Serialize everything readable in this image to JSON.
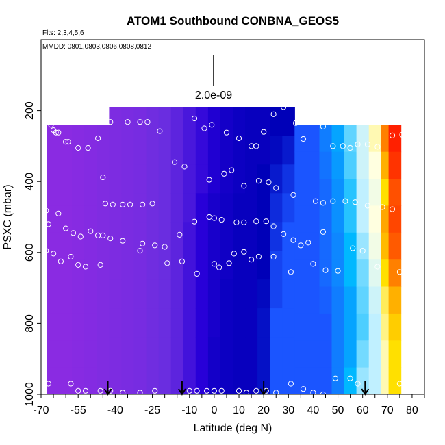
{
  "chart_data": {
    "type": "heatmap",
    "title": "ATOM1 Southbound CONBNA_GEOS5",
    "subtitle_flights": "Flts: 2,3,4,5,6",
    "subtitle_dates": "MMDD: 0801,0803,0806,0808,0812",
    "xlabel": "Latitude (deg N)",
    "ylabel": "PSXC (mbar)",
    "xlim": [
      -70,
      85
    ],
    "ylim": [
      1000,
      0
    ],
    "x_tick_labels": [
      "-70",
      "-55",
      "-40",
      "-25",
      "-10",
      "0",
      "10",
      "20",
      "30",
      "40",
      "50",
      "60",
      "70",
      "80"
    ],
    "y_tick_labels": [
      "200",
      "400",
      "600",
      "800",
      "1000"
    ],
    "scale_label": "2.0e-09",
    "arrow_latitudes": [
      -43,
      -13,
      20,
      61
    ],
    "color_stops": [
      "#8a2be2",
      "#6a2de0",
      "#2800d8",
      "#0000b8",
      "#1b55ff",
      "#00b8ff",
      "#c0f0ff",
      "#ffffe0",
      "#ffe000",
      "#ff8000",
      "#ff2000"
    ],
    "profiles": [
      {
        "lat": 73,
        "top": 240,
        "values": [
          1.0,
          0.98,
          0.95,
          0.96,
          0.94,
          0.9,
          0.85,
          0.82,
          0.8,
          0.8
        ]
      },
      {
        "lat": 70,
        "top": 240,
        "values": [
          0.9,
          0.85,
          0.8,
          0.86,
          0.84,
          0.8,
          0.76,
          0.74,
          0.72,
          0.72
        ]
      },
      {
        "lat": 65,
        "top": 240,
        "values": [
          0.72,
          0.7,
          0.68,
          0.7,
          0.68,
          0.65,
          0.62,
          0.6,
          0.6,
          0.6
        ]
      },
      {
        "lat": 60,
        "top": 240,
        "values": [
          0.62,
          0.62,
          0.6,
          0.6,
          0.58,
          0.56,
          0.55,
          0.54,
          0.56,
          0.58
        ]
      },
      {
        "lat": 55,
        "top": 240,
        "values": [
          0.55,
          0.54,
          0.52,
          0.52,
          0.5,
          0.5,
          0.48,
          0.48,
          0.48,
          0.5
        ]
      },
      {
        "lat": 50,
        "top": 240,
        "values": [
          0.48,
          0.47,
          0.46,
          0.46,
          0.45,
          0.45,
          0.44,
          0.44,
          0.44,
          0.44
        ]
      },
      {
        "lat": 45,
        "top": 240,
        "values": [
          0.44,
          0.43,
          0.42,
          0.42,
          0.42,
          0.42,
          0.41,
          0.4,
          0.4,
          0.4
        ]
      },
      {
        "lat": 40,
        "top": 240,
        "values": [
          0.4,
          0.4,
          0.4,
          0.4,
          0.4,
          0.4,
          0.4,
          0.4,
          0.4,
          0.4
        ]
      },
      {
        "lat": 35,
        "top": 240,
        "values": [
          0.4,
          0.4,
          0.4,
          0.4,
          0.4,
          0.4,
          0.4,
          0.4,
          0.4,
          0.4
        ]
      },
      {
        "lat": 30,
        "top": 190,
        "values": [
          0.3,
          0.33,
          0.36,
          0.38,
          0.4,
          0.4,
          0.4,
          0.4,
          0.4,
          0.4
        ]
      },
      {
        "lat": 25,
        "top": 190,
        "values": [
          0.3,
          0.31,
          0.33,
          0.35,
          0.36,
          0.38,
          0.38,
          0.4,
          0.4,
          0.4
        ]
      },
      {
        "lat": 20,
        "top": 190,
        "values": [
          0.28,
          0.28,
          0.3,
          0.3,
          0.3,
          0.3,
          0.31,
          0.32,
          0.32,
          0.32
        ]
      },
      {
        "lat": 15,
        "top": 190,
        "values": [
          0.28,
          0.28,
          0.28,
          0.28,
          0.28,
          0.28,
          0.28,
          0.28,
          0.28,
          0.28
        ]
      },
      {
        "lat": 10,
        "top": 190,
        "values": [
          0.27,
          0.27,
          0.27,
          0.28,
          0.28,
          0.28,
          0.28,
          0.28,
          0.28,
          0.28
        ]
      },
      {
        "lat": 5,
        "top": 190,
        "values": [
          0.25,
          0.25,
          0.25,
          0.26,
          0.26,
          0.26,
          0.27,
          0.27,
          0.27,
          0.27
        ]
      },
      {
        "lat": 0,
        "top": 190,
        "values": [
          0.22,
          0.22,
          0.22,
          0.24,
          0.24,
          0.24,
          0.24,
          0.24,
          0.25,
          0.25
        ]
      },
      {
        "lat": -5,
        "top": 190,
        "values": [
          0.18,
          0.18,
          0.18,
          0.2,
          0.2,
          0.2,
          0.2,
          0.2,
          0.2,
          0.2
        ]
      },
      {
        "lat": -10,
        "top": 190,
        "values": [
          0.15,
          0.15,
          0.15,
          0.15,
          0.16,
          0.16,
          0.16,
          0.16,
          0.16,
          0.16
        ]
      },
      {
        "lat": -15,
        "top": 190,
        "values": [
          0.12,
          0.12,
          0.12,
          0.12,
          0.12,
          0.12,
          0.12,
          0.12,
          0.12,
          0.12
        ]
      },
      {
        "lat": -20,
        "top": 190,
        "values": [
          0.1,
          0.1,
          0.1,
          0.1,
          0.1,
          0.1,
          0.1,
          0.1,
          0.1,
          0.1
        ]
      },
      {
        "lat": -25,
        "top": 190,
        "values": [
          0.08,
          0.08,
          0.08,
          0.08,
          0.08,
          0.08,
          0.08,
          0.08,
          0.08,
          0.08
        ]
      },
      {
        "lat": -30,
        "top": 190,
        "values": [
          0.06,
          0.06,
          0.06,
          0.06,
          0.06,
          0.06,
          0.06,
          0.06,
          0.06,
          0.06
        ]
      },
      {
        "lat": -35,
        "top": 190,
        "values": [
          0.05,
          0.05,
          0.05,
          0.05,
          0.05,
          0.05,
          0.05,
          0.05,
          0.05,
          0.05
        ]
      },
      {
        "lat": -40,
        "top": 190,
        "values": [
          0.04,
          0.04,
          0.04,
          0.04,
          0.04,
          0.04,
          0.04,
          0.04,
          0.04,
          0.04
        ]
      },
      {
        "lat": -45,
        "top": 240,
        "values": [
          0.03,
          0.03,
          0.03,
          0.03,
          0.03,
          0.03,
          0.03,
          0.03,
          0.03,
          0.03
        ]
      },
      {
        "lat": -50,
        "top": 240,
        "values": [
          0.02,
          0.02,
          0.02,
          0.02,
          0.02,
          0.02,
          0.02,
          0.02,
          0.02,
          0.02
        ]
      },
      {
        "lat": -55,
        "top": 240,
        "values": [
          0.01,
          0.01,
          0.01,
          0.01,
          0.01,
          0.01,
          0.01,
          0.01,
          0.01,
          0.01
        ]
      },
      {
        "lat": -60,
        "top": 240,
        "values": [
          0.0,
          0.0,
          0.0,
          0.0,
          0.0,
          0.0,
          0.0,
          0.0,
          0.0,
          0.0
        ]
      },
      {
        "lat": -65,
        "top": 240,
        "values": [
          0.0,
          0.0,
          0.0,
          0.0,
          0.0,
          0.0,
          0.0,
          0.0,
          0.0,
          0.0
        ]
      }
    ],
    "obs_points": [
      [
        -68,
        225
      ],
      [
        -67,
        230
      ],
      [
        -66,
        240
      ],
      [
        -65,
        255
      ],
      [
        -64,
        262
      ],
      [
        -63,
        262
      ],
      [
        -60,
        288
      ],
      [
        -59,
        288
      ],
      [
        -55,
        305
      ],
      [
        -51,
        305
      ],
      [
        -47,
        278
      ],
      [
        -46,
        200
      ],
      [
        -42,
        232
      ],
      [
        -35,
        232
      ],
      [
        -30,
        232
      ],
      [
        -27,
        232
      ],
      [
        -22,
        258
      ],
      [
        -16,
        345
      ],
      [
        -12,
        358
      ],
      [
        -8,
        222
      ],
      [
        -4,
        250
      ],
      [
        -1,
        240
      ],
      [
        5,
        262
      ],
      [
        10,
        278
      ],
      [
        15,
        300
      ],
      [
        17,
        300
      ],
      [
        20,
        260
      ],
      [
        24,
        210
      ],
      [
        28,
        190
      ],
      [
        33,
        235
      ],
      [
        36,
        280
      ],
      [
        44,
        245
      ],
      [
        48,
        300
      ],
      [
        52,
        300
      ],
      [
        55,
        305
      ],
      [
        58,
        295
      ],
      [
        62,
        295
      ],
      [
        66,
        302
      ],
      [
        72,
        270
      ],
      [
        76,
        268
      ],
      [
        -45,
        388
      ],
      [
        -44,
        462
      ],
      [
        -41,
        465
      ],
      [
        -37,
        465
      ],
      [
        -34,
        465
      ],
      [
        -29,
        465
      ],
      [
        -25,
        462
      ],
      [
        -2,
        395
      ],
      [
        4,
        378
      ],
      [
        7,
        368
      ],
      [
        12,
        412
      ],
      [
        18,
        398
      ],
      [
        22,
        402
      ],
      [
        25,
        418
      ],
      [
        32,
        438
      ],
      [
        41,
        455
      ],
      [
        44,
        460
      ],
      [
        48,
        455
      ],
      [
        53,
        455
      ],
      [
        57,
        458
      ],
      [
        62,
        468
      ],
      [
        68,
        472
      ],
      [
        72,
        478
      ],
      [
        -68,
        482
      ],
      [
        -67,
        520
      ],
      [
        -63,
        490
      ],
      [
        -60,
        532
      ],
      [
        -57,
        545
      ],
      [
        -54,
        555
      ],
      [
        -50,
        540
      ],
      [
        -47,
        552
      ],
      [
        -45,
        552
      ],
      [
        -42,
        560
      ],
      [
        -37,
        567
      ],
      [
        -29,
        575
      ],
      [
        -24,
        580
      ],
      [
        -20,
        584
      ],
      [
        -14,
        550
      ],
      [
        -8,
        513
      ],
      [
        -2,
        500
      ],
      [
        0,
        503
      ],
      [
        3,
        508
      ],
      [
        9,
        515
      ],
      [
        12,
        515
      ],
      [
        17,
        512
      ],
      [
        21,
        512
      ],
      [
        24,
        526
      ],
      [
        28,
        548
      ],
      [
        32,
        565
      ],
      [
        35,
        580
      ],
      [
        38,
        572
      ],
      [
        44,
        542
      ],
      [
        -68,
        595
      ],
      [
        -65,
        603
      ],
      [
        -62,
        625
      ],
      [
        -58,
        612
      ],
      [
        -55,
        635
      ],
      [
        -52,
        640
      ],
      [
        -46,
        635
      ],
      [
        -30,
        595
      ],
      [
        -19,
        630
      ],
      [
        -13,
        625
      ],
      [
        -7,
        660
      ],
      [
        0,
        632
      ],
      [
        2,
        642
      ],
      [
        6,
        630
      ],
      [
        8,
        603
      ],
      [
        12,
        598
      ],
      [
        15,
        620
      ],
      [
        18,
        612
      ],
      [
        24,
        612
      ],
      [
        31,
        655
      ],
      [
        40,
        632
      ],
      [
        45,
        650
      ],
      [
        50,
        652
      ],
      [
        56,
        588
      ],
      [
        60,
        595
      ],
      [
        66,
        640
      ],
      [
        75,
        655
      ],
      [
        79,
        655
      ],
      [
        -67,
        970
      ],
      [
        -58,
        970
      ],
      [
        -55,
        990
      ],
      [
        -52,
        990
      ],
      [
        -46,
        990
      ],
      [
        -42,
        990
      ],
      [
        -37,
        995
      ],
      [
        -30,
        995
      ],
      [
        -24,
        990
      ],
      [
        -10,
        990
      ],
      [
        -7,
        990
      ],
      [
        -3,
        990
      ],
      [
        0,
        990
      ],
      [
        3,
        990
      ],
      [
        10,
        990
      ],
      [
        13,
        995
      ],
      [
        17,
        990
      ],
      [
        21,
        990
      ],
      [
        25,
        995
      ],
      [
        31,
        970
      ],
      [
        36,
        985
      ],
      [
        40,
        995
      ],
      [
        44,
        1000
      ],
      [
        49,
        955
      ],
      [
        55,
        955
      ],
      [
        58,
        970
      ],
      [
        75,
        970
      ],
      [
        80,
        970
      ]
    ]
  }
}
